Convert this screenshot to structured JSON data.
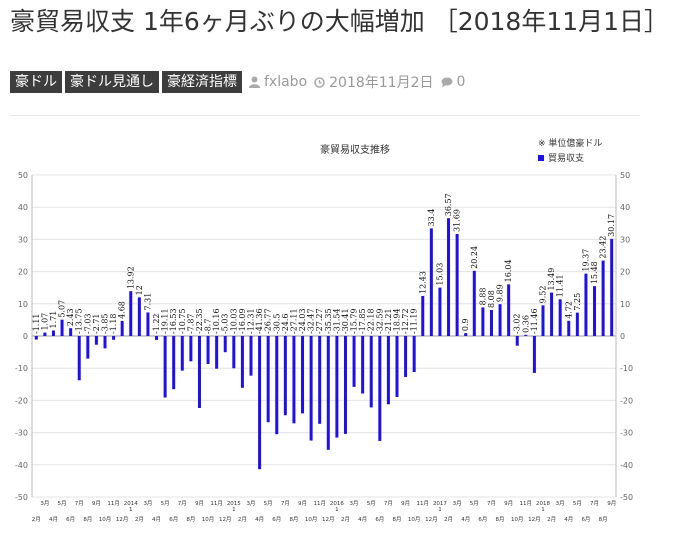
{
  "article": {
    "title": "豪貿易収支 1年6ヶ月ぶりの大幅増加 ［2018年11月1日］",
    "tags": [
      "豪ドル",
      "豪ドル見通し",
      "豪経済指標"
    ],
    "author": "fxlabo",
    "date": "2018年11月2日",
    "comments": "0"
  },
  "icons": {
    "author": "user-icon",
    "date": "clock-icon",
    "comments": "comment-icon"
  },
  "chart_data": {
    "type": "bar",
    "title": "豪貿易収支推移",
    "unit_note": "※ 単位億豪ドル",
    "legend": [
      "貿易収支"
    ],
    "legend_position": "top-right",
    "color": "#1f10e8",
    "ylim": [
      -50,
      50
    ],
    "yticks": [
      50,
      40,
      30,
      20,
      10,
      0,
      -10,
      -20,
      -30,
      -40,
      -50
    ],
    "grid": true,
    "values": [
      -1.11,
      1.07,
      1.71,
      5.07,
      2.43,
      -13.75,
      -7.03,
      -2.71,
      -3.85,
      -1.18,
      4.68,
      13.92,
      12,
      7.31,
      -1.22,
      -19.11,
      -16.53,
      -10.75,
      -7.87,
      -22.35,
      -8.7,
      -10.16,
      -5.03,
      -10.03,
      -16.09,
      -12.31,
      -41.36,
      -26.77,
      -30.5,
      -24.6,
      -27.11,
      -24.03,
      -32.47,
      -27.27,
      -35.35,
      -31.54,
      -30.41,
      -15.79,
      -17.85,
      -22.18,
      -32.59,
      -21.21,
      -18.94,
      -12.72,
      -11.19,
      12.43,
      33.4,
      15.03,
      36.57,
      31.69,
      0.9,
      20.24,
      8.88,
      8.08,
      9.89,
      16.04,
      -3.02,
      0.36,
      -11.46,
      9.52,
      13.49,
      11.41,
      4.72,
      7.25,
      19.37,
      15.48,
      23.42,
      30.17
    ],
    "value_labels": [
      "-1.11",
      "1.07",
      "1.71",
      "5.07",
      "2.43",
      "-13.75",
      "-7.03",
      "-2.71",
      "-3.85",
      "-1.18",
      "4.68",
      "13.92",
      "12",
      "7.31",
      "-1.22",
      "-19.11",
      "-16.53",
      "-10.75",
      "-7.87",
      "-22.35",
      "-8.7",
      "-10.16",
      "-5.03",
      "-10.03",
      "-16.09",
      "-12.31",
      "-41.36",
      "-26.77",
      "-30.5",
      "-24.6",
      "-27.11",
      "-24.03",
      "-32.47",
      "-27.27",
      "-35.35",
      "-31.54",
      "-30.41",
      "-15.79",
      "-17.85",
      "-22.18",
      "-32.59",
      "-21.21",
      "-18.94",
      "-12.72",
      "-11.19",
      "12.43",
      "33.4",
      "15.03",
      "36.57",
      "31.69",
      "0.9",
      "20.24",
      "8.88",
      "8.08",
      "9.89",
      "16.04",
      "-3.02",
      "0.36",
      "-11.46",
      "9.52",
      "13.49",
      "11.41",
      "4.72",
      "7.25",
      "19.37",
      "15.48",
      "23.42",
      "30.17"
    ],
    "x_labels": [
      "2月",
      "3月",
      "4月",
      "5月",
      "6月",
      "7月",
      "8月",
      "9月",
      "10月",
      "11月",
      "12月",
      "2014 1",
      "2月",
      "3月",
      "4月",
      "5月",
      "6月",
      "7月",
      "8月",
      "9月",
      "10月",
      "11月",
      "12月",
      "2015 1",
      "2月",
      "3月",
      "4月",
      "5月",
      "6月",
      "7月",
      "8月",
      "9月",
      "10月",
      "11月",
      "12月",
      "2016 1",
      "2月",
      "3月",
      "4月",
      "5月",
      "6月",
      "7月",
      "8月",
      "9月",
      "10月",
      "11月",
      "12月",
      "2017 1",
      "2月",
      "3月",
      "4月",
      "5月",
      "6月",
      "7月",
      "8月",
      "9月",
      "10月",
      "11月",
      "12月",
      "2018 1",
      "2月",
      "3月",
      "4月",
      "5月",
      "6月",
      "7月",
      "8月",
      "9月"
    ]
  }
}
